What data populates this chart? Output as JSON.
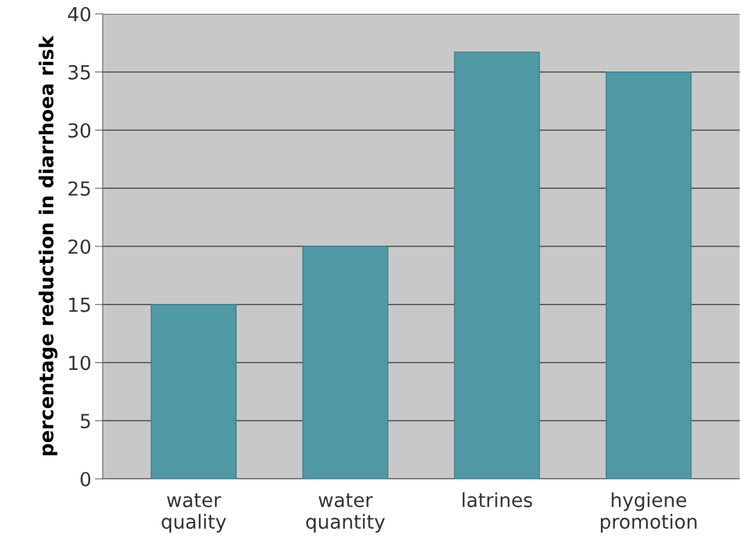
{
  "chart_data": {
    "type": "bar",
    "ylabel": "percentage reduction in diarrhoea risk",
    "categories": [
      "water\nquality",
      "water\nquantity",
      "latrines",
      "hygiene\npromotion"
    ],
    "values": [
      15,
      20,
      36.7,
      35
    ],
    "color": "#5098a4",
    "ylim": [
      0,
      40
    ],
    "yticks": [
      0,
      5,
      10,
      15,
      20,
      25,
      30,
      35,
      40
    ],
    "grid": "y"
  }
}
